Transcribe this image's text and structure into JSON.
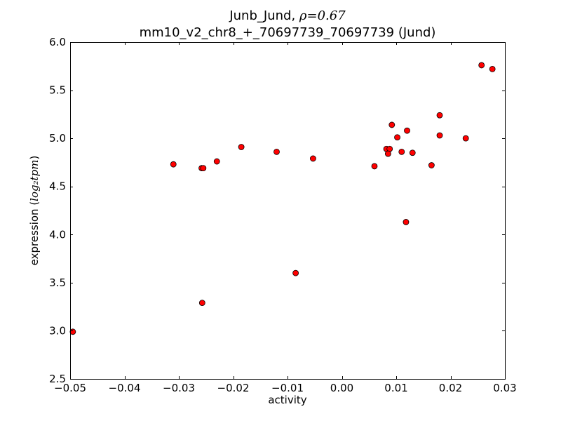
{
  "chart_data": {
    "type": "scatter",
    "title_line1_prefix": "Junb_Jund, ",
    "title_rho_symbol": "ρ",
    "title_rho_value": "=0.67",
    "title_line2": "mm10_v2_chr8_+_70697739_70697739 (Jund)",
    "xlabel": "activity",
    "ylabel_prefix": "expression (",
    "ylabel_math": "log₂tpm",
    "ylabel_suffix": ")",
    "xlim": [
      -0.05,
      0.03
    ],
    "ylim": [
      2.5,
      6.0
    ],
    "xticks": [
      -0.05,
      -0.04,
      -0.03,
      -0.02,
      -0.01,
      0.0,
      0.01,
      0.02,
      0.03
    ],
    "xtick_labels": [
      "−0.05",
      "−0.04",
      "−0.03",
      "−0.02",
      "−0.01",
      "0.00",
      "0.01",
      "0.02",
      "0.03"
    ],
    "yticks": [
      2.5,
      3.0,
      3.5,
      4.0,
      4.5,
      5.0,
      5.5,
      6.0
    ],
    "ytick_labels": [
      "2.5",
      "3.0",
      "3.5",
      "4.0",
      "4.5",
      "5.0",
      "5.5",
      "6.0"
    ],
    "grid": false,
    "marker_color": "#ff0000",
    "marker_edge_color": "#000000",
    "points": [
      {
        "x": -0.0495,
        "y": 2.99
      },
      {
        "x": -0.031,
        "y": 4.73
      },
      {
        "x": -0.0258,
        "y": 4.69
      },
      {
        "x": -0.0255,
        "y": 4.69
      },
      {
        "x": -0.0257,
        "y": 3.29
      },
      {
        "x": -0.023,
        "y": 4.76
      },
      {
        "x": -0.0185,
        "y": 4.91
      },
      {
        "x": -0.012,
        "y": 4.86
      },
      {
        "x": -0.0085,
        "y": 3.6
      },
      {
        "x": -0.0053,
        "y": 4.79
      },
      {
        "x": 0.006,
        "y": 4.71
      },
      {
        "x": 0.0082,
        "y": 4.89
      },
      {
        "x": 0.0088,
        "y": 4.89
      },
      {
        "x": 0.0085,
        "y": 4.84
      },
      {
        "x": 0.0092,
        "y": 5.14
      },
      {
        "x": 0.0102,
        "y": 5.01
      },
      {
        "x": 0.011,
        "y": 4.86
      },
      {
        "x": 0.0118,
        "y": 4.13
      },
      {
        "x": 0.012,
        "y": 5.08
      },
      {
        "x": 0.013,
        "y": 4.85
      },
      {
        "x": 0.0165,
        "y": 4.72
      },
      {
        "x": 0.018,
        "y": 5.24
      },
      {
        "x": 0.018,
        "y": 5.03
      },
      {
        "x": 0.0228,
        "y": 5.0
      },
      {
        "x": 0.0257,
        "y": 5.76
      },
      {
        "x": 0.0277,
        "y": 5.72
      }
    ]
  }
}
